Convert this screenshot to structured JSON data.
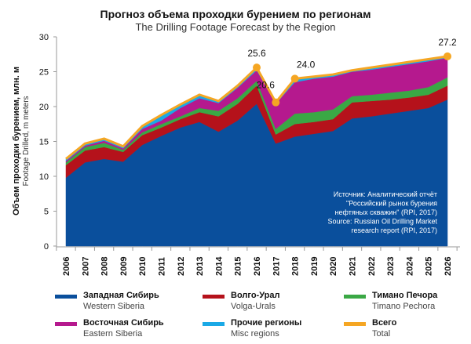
{
  "chart_data": {
    "type": "area",
    "stacked": true,
    "title": "Прогноз объема проходки бурением по регионам",
    "subtitle": "The Drilling Footage Forecast by the Region",
    "ylabel": "Объем проходки бурением, млн. м",
    "ylabel_en": "Footage Drilled, m meters",
    "ylim": [
      0,
      30
    ],
    "yticks": [
      0,
      5,
      10,
      15,
      20,
      25,
      30
    ],
    "categories": [
      "2006",
      "2007",
      "2008",
      "2009",
      "2010",
      "2011",
      "2012",
      "2013",
      "2014",
      "2015",
      "2016",
      "2017",
      "2018",
      "2019",
      "2020",
      "2021",
      "2022",
      "2023",
      "2024",
      "2025",
      "2026"
    ],
    "series": [
      {
        "name": "Западная Сибирь",
        "name_en": "Western Siberia",
        "color": "#0a4f9c",
        "values": [
          9.8,
          12.0,
          12.5,
          12.1,
          14.5,
          15.8,
          17.0,
          17.8,
          16.4,
          18.0,
          20.4,
          14.7,
          15.7,
          16.1,
          16.5,
          18.3,
          18.6,
          19.0,
          19.4,
          19.8,
          21.0
        ]
      },
      {
        "name": "Волго-Урал",
        "name_en": "Volga-Urals",
        "color": "#b5121b",
        "values": [
          1.8,
          1.7,
          1.7,
          1.4,
          1.4,
          1.2,
          1.2,
          1.4,
          2.2,
          2.4,
          2.6,
          1.3,
          1.8,
          1.7,
          1.7,
          2.3,
          2.2,
          2.0,
          1.9,
          1.9,
          2.0
        ]
      },
      {
        "name": "Тимано Печора",
        "name_en": "Timano Pechora",
        "color": "#3aa845",
        "values": [
          0.4,
          0.5,
          0.6,
          0.3,
          0.4,
          0.5,
          0.4,
          0.6,
          0.8,
          0.8,
          0.7,
          0.8,
          1.5,
          1.4,
          1.4,
          0.9,
          0.9,
          1.0,
          1.0,
          1.1,
          1.2
        ]
      },
      {
        "name": "Восточная Сибирь",
        "name_en": "Eastern Siberia",
        "color": "#b5198e",
        "values": [
          0.2,
          0.2,
          0.3,
          0.2,
          0.5,
          0.5,
          1.2,
          1.4,
          1.1,
          1.5,
          1.5,
          3.6,
          4.5,
          4.8,
          4.7,
          3.5,
          3.6,
          3.7,
          3.8,
          3.7,
          2.8
        ]
      },
      {
        "name": "Прочие регионы",
        "name_en": "Misc regions",
        "color": "#1aa9e6",
        "values": [
          0.3,
          0.3,
          0.3,
          0.3,
          0.4,
          0.8,
          0.5,
          0.5,
          0.3,
          0.3,
          0.4,
          0.2,
          0.5,
          0.3,
          0.3,
          0.2,
          0.3,
          0.3,
          0.3,
          0.3,
          0.2
        ]
      }
    ],
    "total": {
      "name": "Всего",
      "name_en": "Total",
      "color": "#f5a623",
      "values": [
        12.5,
        14.7,
        15.4,
        14.3,
        17.2,
        18.8,
        20.3,
        21.7,
        20.8,
        23.0,
        25.6,
        20.6,
        24.0,
        24.3,
        24.6,
        25.2,
        25.6,
        26.0,
        26.4,
        26.8,
        27.2
      ]
    },
    "annotations": [
      {
        "year": "2016",
        "label": "25.6"
      },
      {
        "year": "2017",
        "label": "20.6"
      },
      {
        "year": "2018",
        "label": "24.0"
      },
      {
        "year": "2026",
        "label": "27.2"
      }
    ],
    "source_lines": [
      "Источник: Аналитический отчёт",
      "\"Российский рынок бурения",
      "нефтяных скважин\" (RPI, 2017)",
      "Source: Russian Oil Drilling Market",
      "research report (RPI, 2017)"
    ],
    "grid": false,
    "legend_position": "bottom"
  }
}
